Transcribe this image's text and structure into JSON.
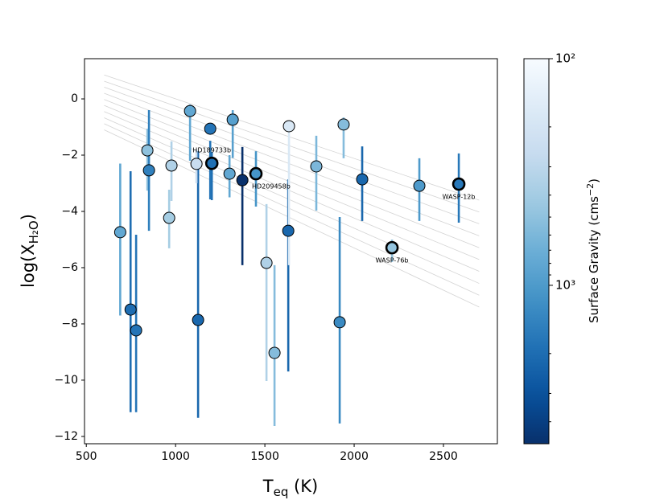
{
  "chart_data": {
    "type": "scatter",
    "xlabel": {
      "text": "T",
      "subscript": "eq",
      "end": " (K)"
    },
    "ylabel": {
      "text": "log(X",
      "subscript": "H₂O",
      "end": ")"
    },
    "xlim": [
      490,
      2802
    ],
    "ylim": [
      -12.26,
      1.43
    ],
    "xticks": [
      500,
      1000,
      1500,
      2000,
      2500
    ],
    "yticks": [
      {
        "value": -12,
        "label": "−12"
      },
      {
        "value": -10,
        "label": "−10"
      },
      {
        "value": -8,
        "label": "−8"
      },
      {
        "value": -6,
        "label": "−6"
      },
      {
        "value": -4,
        "label": "−4"
      },
      {
        "value": -2,
        "label": "−2"
      },
      0
    ],
    "x": [
      690,
      748,
      779,
      842,
      851,
      964,
      977,
      1081,
      1126,
      1117,
      1194,
      1203,
      1302,
      1320,
      1374,
      1450,
      1509,
      1554,
      1631,
      1635,
      1788,
      1919,
      1941,
      2045,
      2212,
      2365,
      2586
    ],
    "y": [
      -4.74,
      -7.49,
      -8.23,
      -1.83,
      -2.54,
      -4.23,
      -2.37,
      -0.43,
      -7.86,
      -2.31,
      -1.06,
      -2.29,
      -2.66,
      -0.74,
      -2.89,
      -2.66,
      -5.83,
      -9.03,
      -4.69,
      -0.97,
      -2.4,
      -7.94,
      -0.91,
      -2.86,
      -5.29,
      -3.09,
      -3.03
    ],
    "y_lower": [
      -7.7,
      -11.14,
      -11.14,
      -3.26,
      -4.69,
      -5.31,
      -3.63,
      -2.2,
      -11.34,
      -3.0,
      -3.57,
      -3.6,
      -3.5,
      -2.1,
      -5.91,
      -3.83,
      -10.03,
      -11.63,
      -9.69,
      -5.91,
      -3.97,
      -11.54,
      -2.11,
      -4.34,
      -5.8,
      -4.34,
      -4.4
    ],
    "y_upper": [
      -2.3,
      -2.57,
      -4.83,
      -1.06,
      -0.4,
      -3.23,
      -1.51,
      -0.2,
      -1.86,
      -1.8,
      -1.49,
      -1.9,
      -2.0,
      -0.4,
      -1.71,
      -1.86,
      -3.74,
      -5.91,
      -2.86,
      -0.83,
      -1.31,
      -4.2,
      -0.66,
      -1.69,
      -5.0,
      -2.11,
      -1.94
    ],
    "gravity": [
      800,
      2000,
      1800,
      500,
      1500,
      400,
      350,
      800,
      2200,
      250,
      1800,
      1900,
      800,
      900,
      5000,
      1100,
      350,
      550,
      2200,
      180,
      600,
      1300,
      550,
      2200,
      480,
      1000,
      1700
    ],
    "point_labels": [
      null,
      null,
      null,
      null,
      null,
      null,
      null,
      null,
      null,
      null,
      null,
      "HD189733b",
      null,
      null,
      null,
      "HD209458b",
      null,
      null,
      null,
      null,
      null,
      null,
      null,
      null,
      "WASP-76b",
      null,
      "WASP-12b"
    ],
    "model_lines": {
      "x": [
        600,
        2700
      ],
      "y": [
        [
          0.85,
          -3.6
        ],
        [
          0.63,
          -4.02
        ],
        [
          0.42,
          -4.44
        ],
        [
          0.2,
          -4.87
        ],
        [
          -0.02,
          -5.29
        ],
        [
          -0.23,
          -5.71
        ],
        [
          -0.45,
          -6.13
        ],
        [
          -0.67,
          -6.56
        ],
        [
          -0.88,
          -6.98
        ],
        [
          -1.1,
          -7.4
        ]
      ],
      "color": "#d3d3d3"
    },
    "colormap": [
      "#f7fbff",
      "#deebf7",
      "#c6dbef",
      "#9ecae1",
      "#6baed6",
      "#4292c6",
      "#2171b5",
      "#08519c",
      "#08306b"
    ],
    "colorbar": {
      "label": {
        "text": "Surface Gravity (cms",
        "superscript": "−2",
        "end": ")"
      },
      "clim": [
        100,
        5000
      ],
      "log": true,
      "ticks": [
        {
          "value": 100,
          "label": "10²"
        },
        {
          "value": 1000,
          "label": "10³"
        }
      ],
      "minor_ticks": [
        200,
        300,
        400,
        500,
        600,
        700,
        800,
        900,
        2000,
        3000,
        4000
      ]
    }
  }
}
